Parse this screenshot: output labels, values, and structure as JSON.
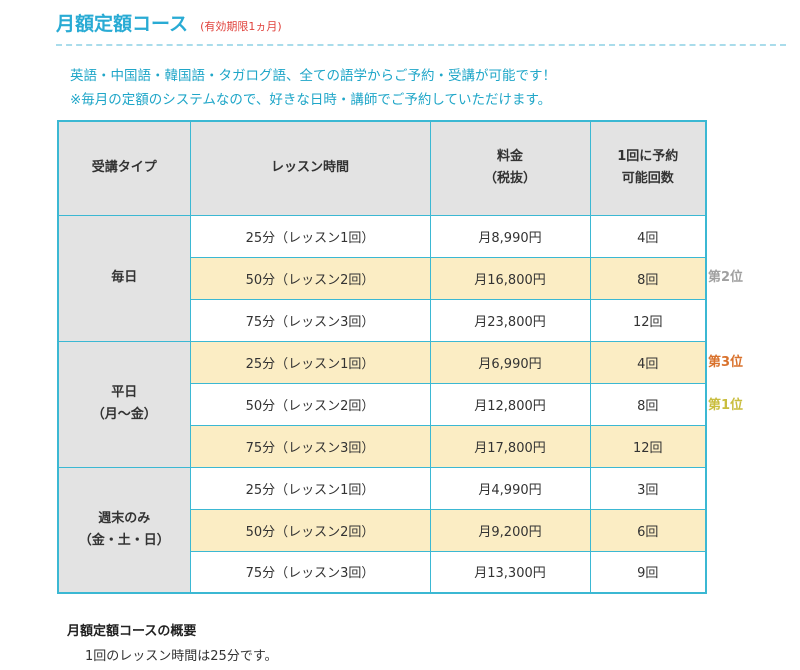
{
  "header": {
    "title": "月額定額コース",
    "subtitle": "(有効期限1ヵ月)"
  },
  "intro": {
    "line1": "英語・中国語・韓国語・タガログ語、全ての語学からご予約・受講が可能です！",
    "line2": "※毎月の定額のシステムなので、好きな日時・講師でご予約していただけます。"
  },
  "table": {
    "headers": {
      "type": "受講タイプ",
      "time": "レッスン時間",
      "price_line1": "料金",
      "price_line2": "（税抜）",
      "count_line1": "1回に予約",
      "count_line2": "可能回数"
    },
    "groups": [
      {
        "type_line1": "毎日",
        "type_line2": "",
        "rows": [
          {
            "time": "25分（レッスン1回）",
            "price": "月8,990円",
            "count": "4回",
            "highlight": false,
            "rank": ""
          },
          {
            "time": "50分（レッスン2回）",
            "price": "月16,800円",
            "count": "8回",
            "highlight": true,
            "rank": "第2位"
          },
          {
            "time": "75分（レッスン3回）",
            "price": "月23,800円",
            "count": "12回",
            "highlight": false,
            "rank": ""
          }
        ]
      },
      {
        "type_line1": "平日",
        "type_line2": "（月～金）",
        "rows": [
          {
            "time": "25分（レッスン1回）",
            "price": "月6,990円",
            "count": "4回",
            "highlight": true,
            "rank": "第3位"
          },
          {
            "time": "50分（レッスン2回）",
            "price": "月12,800円",
            "count": "8回",
            "highlight": false,
            "rank": "第1位"
          },
          {
            "time": "75分（レッスン3回）",
            "price": "月17,800円",
            "count": "12回",
            "highlight": true,
            "rank": ""
          }
        ]
      },
      {
        "type_line1": "週末のみ",
        "type_line2": "（金・土・日）",
        "rows": [
          {
            "time": "25分（レッスン1回）",
            "price": "月4,990円",
            "count": "3回",
            "highlight": false,
            "rank": ""
          },
          {
            "time": "50分（レッスン2回）",
            "price": "月9,200円",
            "count": "6回",
            "highlight": true,
            "rank": ""
          },
          {
            "time": "75分（レッスン3回）",
            "price": "月13,300円",
            "count": "9回",
            "highlight": false,
            "rank": ""
          }
        ]
      }
    ]
  },
  "ranks": {
    "second": {
      "label": "第2位",
      "color": "#a0a0a0"
    },
    "third": {
      "label": "第3位",
      "color": "#d9722d"
    },
    "first": {
      "label": "第1位",
      "color": "#c9bd3e"
    }
  },
  "summary": {
    "title": "月額定額コースの概要",
    "text": "1回のレッスン時間は25分です。"
  }
}
